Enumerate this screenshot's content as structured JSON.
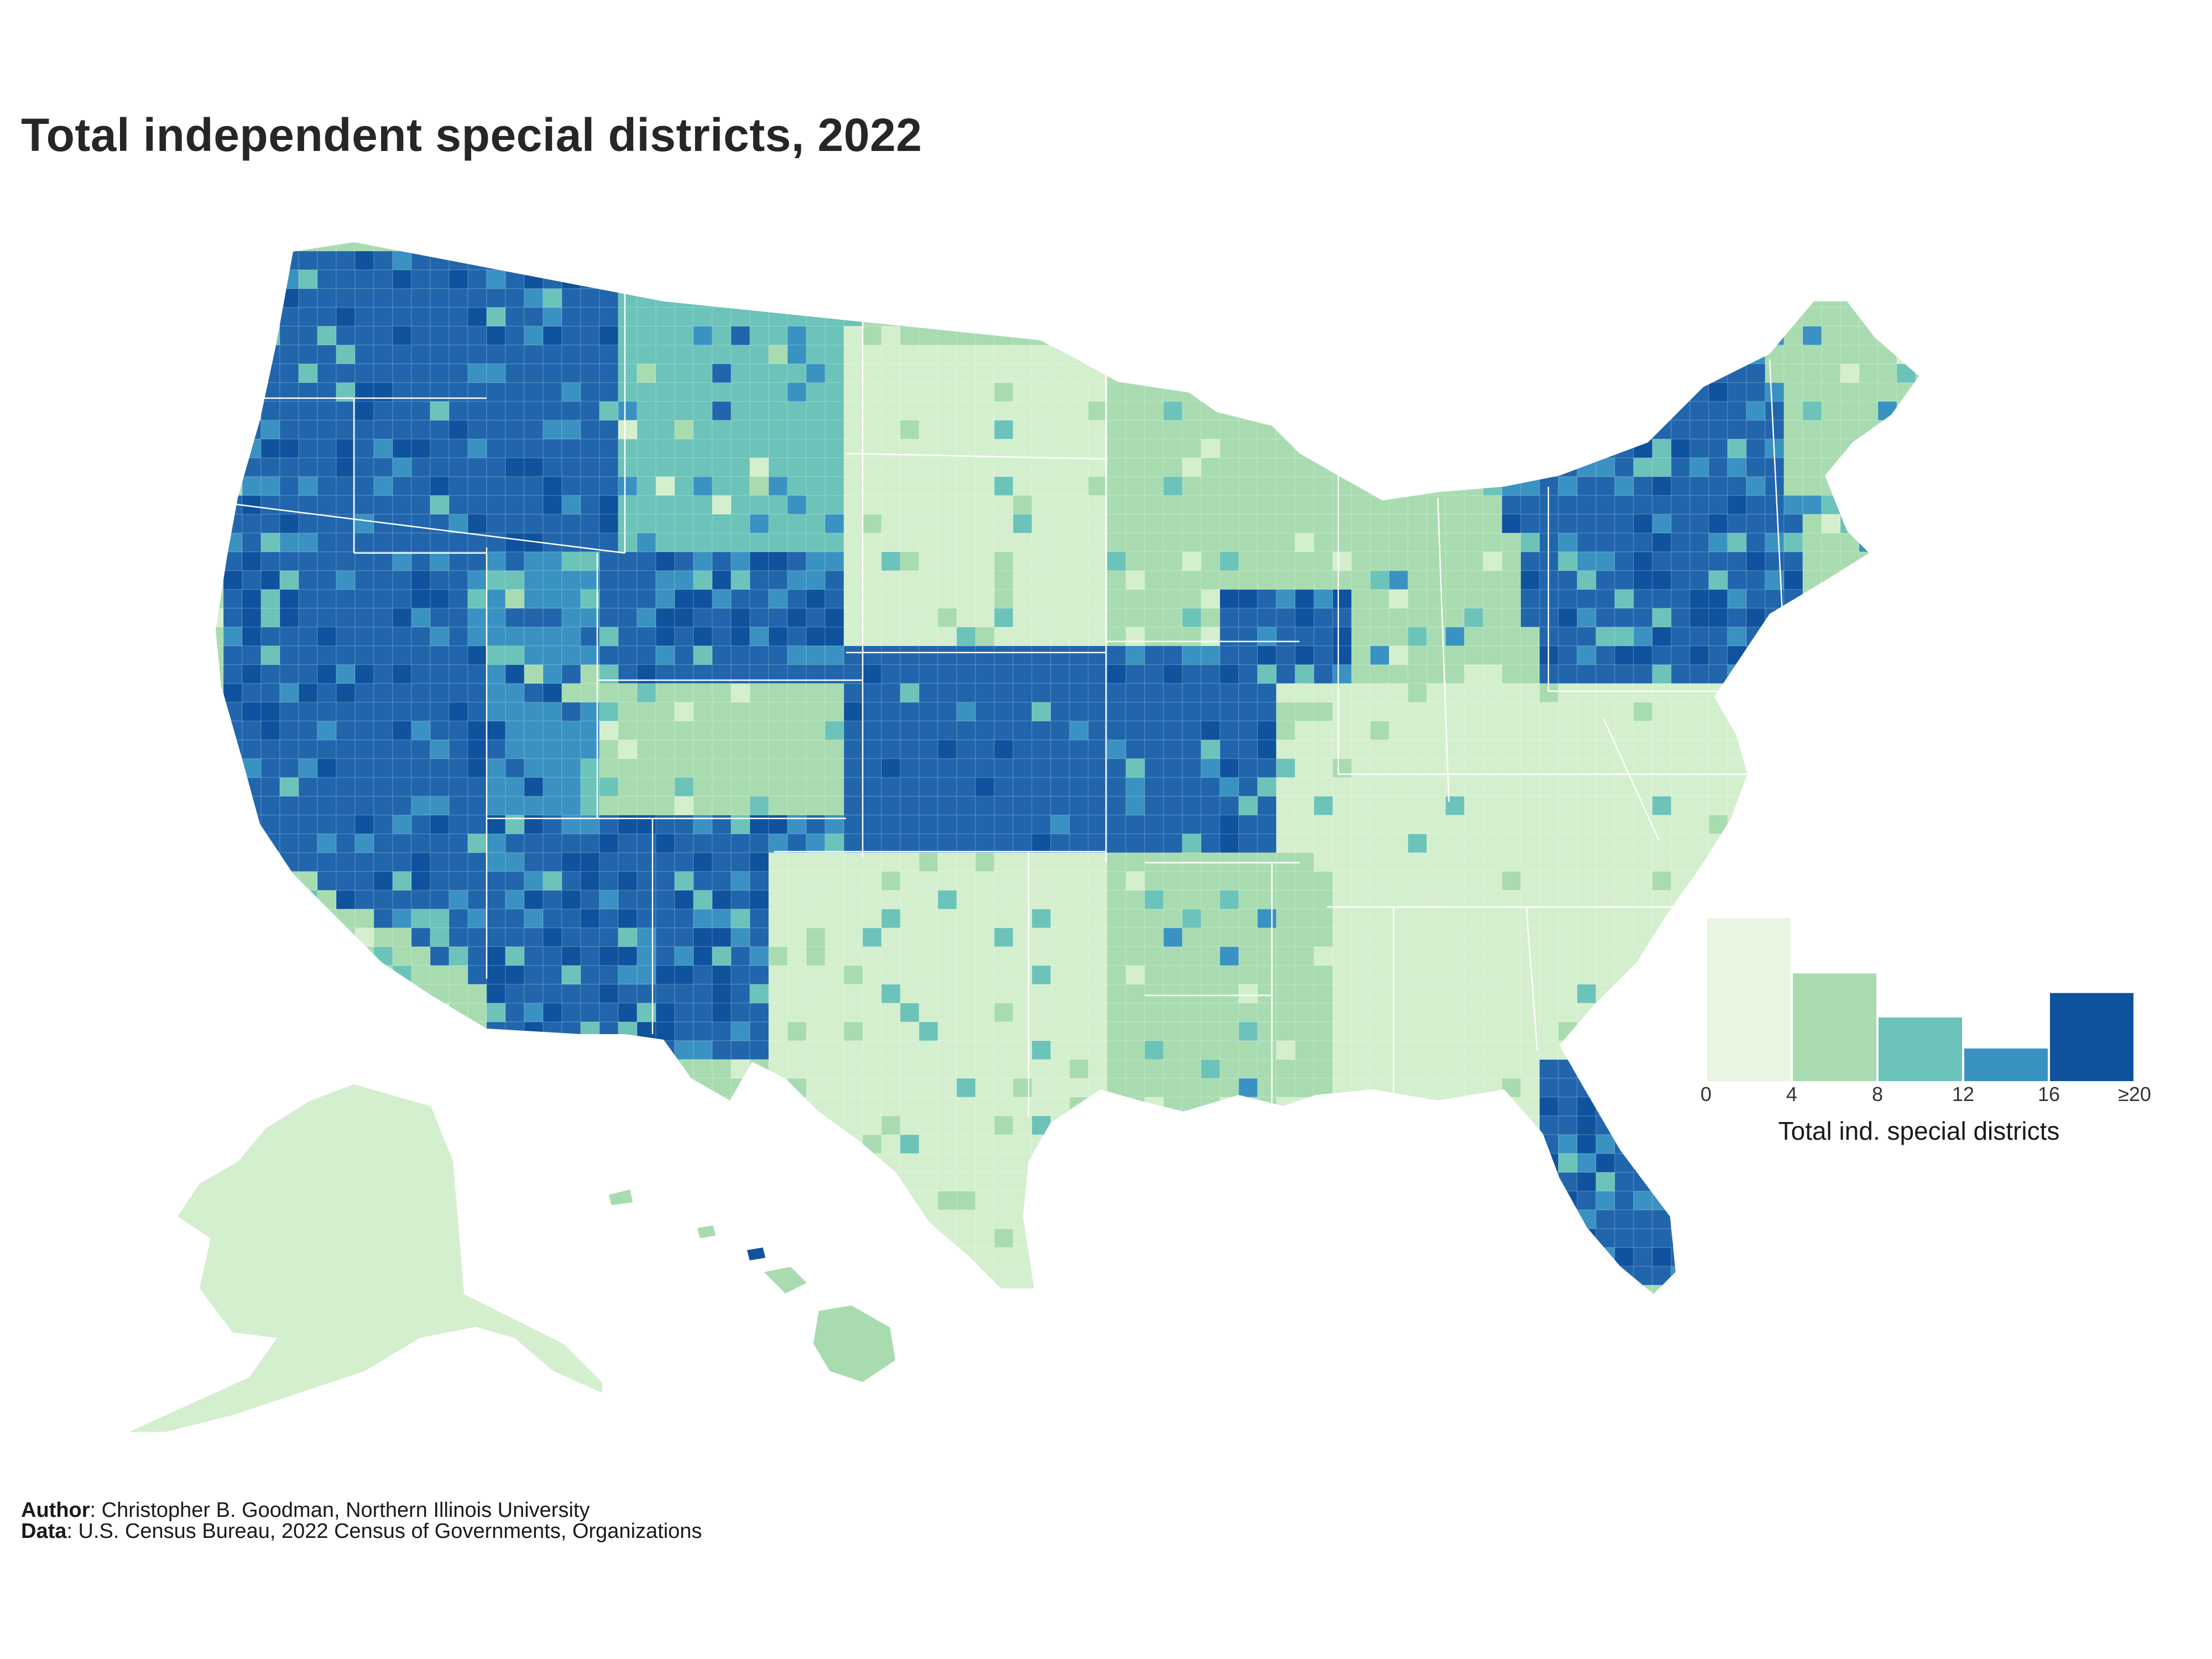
{
  "title": "Total independent special districts, 2022",
  "legend": {
    "caption": "Total ind. special districts",
    "ticks": [
      "0",
      "4",
      "8",
      "12",
      "16",
      "≥20"
    ],
    "bins": [
      {
        "range": "0–4",
        "relative_share": 1.0,
        "color": "#e8f5e0"
      },
      {
        "range": "4–8",
        "relative_share": 0.66,
        "color": "#a8dcb0"
      },
      {
        "range": "8–12",
        "relative_share": 0.39,
        "color": "#6cc3b9"
      },
      {
        "range": "12–16",
        "relative_share": 0.2,
        "color": "#3a92c2"
      },
      {
        "range": "≥20",
        "relative_share": 0.54,
        "color": "#0f529e"
      }
    ]
  },
  "credits": {
    "author_label": "Author",
    "author_text": ": Christopher B. Goodman, Northern Illinois University",
    "data_label": "Data",
    "data_text": ": U.S. Census Bureau, 2022 Census of Governments, Organizations"
  },
  "palette": {
    "lowest": "#d4efce",
    "low": "#a8dcb0",
    "mid": "#6cc3b9",
    "high": "#3a92c2",
    "highest": "#2166ac",
    "top": "#0f529e",
    "border": "#ffffff"
  }
}
